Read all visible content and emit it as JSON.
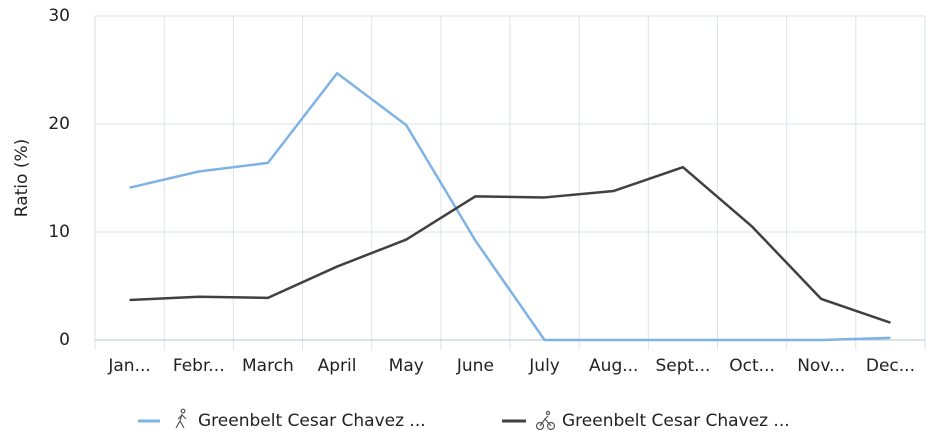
{
  "chart_data": {
    "type": "line",
    "y_label": "Ratio (%)",
    "categories": [
      "Jan...",
      "Febr...",
      "March",
      "April",
      "May",
      "June",
      "July",
      "Aug...",
      "Sept...",
      "Oct...",
      "Nov...",
      "Dec..."
    ],
    "series": [
      {
        "name": "Greenbelt Cesar Chavez ...",
        "color": "#7fb3e6",
        "values": [
          14.1,
          15.6,
          16.4,
          24.7,
          19.9,
          9.2,
          0,
          0,
          0,
          0,
          0,
          0.2
        ]
      },
      {
        "name": "Greenbelt Cesar Chavez ...",
        "color": "#404040",
        "values": [
          3.7,
          4.0,
          3.9,
          6.8,
          9.3,
          13.3,
          13.2,
          13.8,
          16.0,
          10.5,
          3.8,
          1.6
        ]
      }
    ],
    "ylim": [
      0,
      30
    ],
    "yticks": [
      0,
      10,
      20,
      30
    ],
    "grid": true
  }
}
